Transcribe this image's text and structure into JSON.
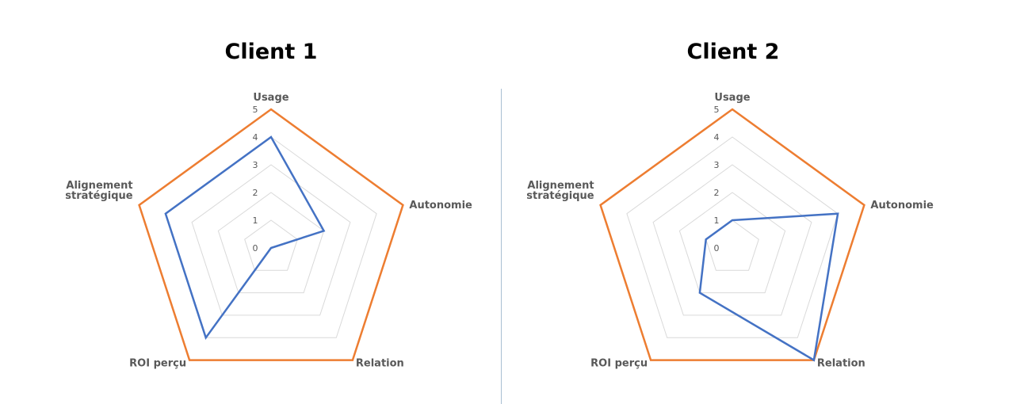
{
  "chart_data": [
    {
      "type": "radar",
      "title": "Client 1",
      "axes": [
        "Usage",
        "Autonomie",
        "Relation",
        "ROI perçu",
        "Alignement stratégique"
      ],
      "axis_label_lines": [
        [
          "Usage"
        ],
        [
          "Autonomie"
        ],
        [
          "Relation"
        ],
        [
          "ROI perçu"
        ],
        [
          "Alignement",
          "stratégique"
        ]
      ],
      "ticks": [
        "0",
        "1",
        "2",
        "3",
        "4",
        "5"
      ],
      "range": [
        0,
        5
      ],
      "series": [
        {
          "color": "#ed7d31",
          "values": [
            5,
            5,
            5,
            5,
            5
          ]
        },
        {
          "color": "#4472c4",
          "values": [
            4,
            2,
            0,
            4,
            4
          ]
        }
      ]
    },
    {
      "type": "radar",
      "title": "Client 2",
      "axes": [
        "Usage",
        "Autonomie",
        "Relation",
        "ROI perçu",
        "Alignement stratégique"
      ],
      "axis_label_lines": [
        [
          "Usage"
        ],
        [
          "Autonomie"
        ],
        [
          "Relation"
        ],
        [
          "ROI perçu"
        ],
        [
          "Alignement",
          "stratégique"
        ]
      ],
      "ticks": [
        "0",
        "1",
        "2",
        "3",
        "4",
        "5"
      ],
      "range": [
        0,
        5
      ],
      "series": [
        {
          "color": "#ed7d31",
          "values": [
            5,
            5,
            5,
            5,
            5
          ]
        },
        {
          "color": "#4472c4",
          "values": [
            1,
            4,
            5,
            2,
            1
          ]
        }
      ]
    }
  ],
  "colors": {
    "grid": "#d9d9d9",
    "divider": "#a9bfd3",
    "label": "#595959"
  }
}
